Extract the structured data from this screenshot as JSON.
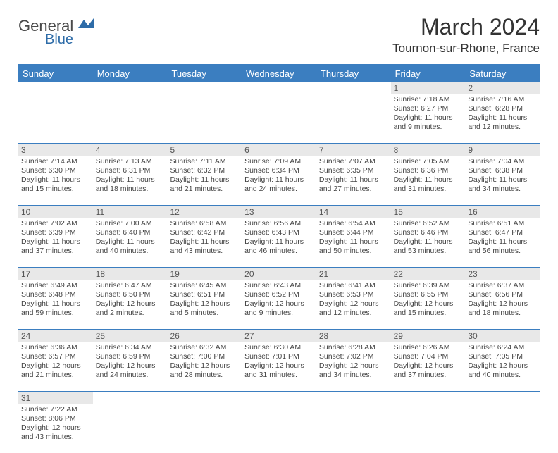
{
  "logo": {
    "main": "General",
    "sub": "Blue"
  },
  "title": "March 2024",
  "location": "Tournon-sur-Rhone, France",
  "colors": {
    "header_bg": "#3b7ec0",
    "header_text": "#ffffff",
    "daynum_bg": "#e8e8e8",
    "border": "#3b7ec0",
    "text": "#444444"
  },
  "day_names": [
    "Sunday",
    "Monday",
    "Tuesday",
    "Wednesday",
    "Thursday",
    "Friday",
    "Saturday"
  ],
  "weeks": [
    {
      "nums": [
        "",
        "",
        "",
        "",
        "",
        "1",
        "2"
      ],
      "cells": [
        {
          "lines": []
        },
        {
          "lines": []
        },
        {
          "lines": []
        },
        {
          "lines": []
        },
        {
          "lines": []
        },
        {
          "lines": [
            "Sunrise: 7:18 AM",
            "Sunset: 6:27 PM",
            "Daylight: 11 hours",
            "and 9 minutes."
          ]
        },
        {
          "lines": [
            "Sunrise: 7:16 AM",
            "Sunset: 6:28 PM",
            "Daylight: 11 hours",
            "and 12 minutes."
          ]
        }
      ]
    },
    {
      "nums": [
        "3",
        "4",
        "5",
        "6",
        "7",
        "8",
        "9"
      ],
      "cells": [
        {
          "lines": [
            "Sunrise: 7:14 AM",
            "Sunset: 6:30 PM",
            "Daylight: 11 hours",
            "and 15 minutes."
          ]
        },
        {
          "lines": [
            "Sunrise: 7:13 AM",
            "Sunset: 6:31 PM",
            "Daylight: 11 hours",
            "and 18 minutes."
          ]
        },
        {
          "lines": [
            "Sunrise: 7:11 AM",
            "Sunset: 6:32 PM",
            "Daylight: 11 hours",
            "and 21 minutes."
          ]
        },
        {
          "lines": [
            "Sunrise: 7:09 AM",
            "Sunset: 6:34 PM",
            "Daylight: 11 hours",
            "and 24 minutes."
          ]
        },
        {
          "lines": [
            "Sunrise: 7:07 AM",
            "Sunset: 6:35 PM",
            "Daylight: 11 hours",
            "and 27 minutes."
          ]
        },
        {
          "lines": [
            "Sunrise: 7:05 AM",
            "Sunset: 6:36 PM",
            "Daylight: 11 hours",
            "and 31 minutes."
          ]
        },
        {
          "lines": [
            "Sunrise: 7:04 AM",
            "Sunset: 6:38 PM",
            "Daylight: 11 hours",
            "and 34 minutes."
          ]
        }
      ]
    },
    {
      "nums": [
        "10",
        "11",
        "12",
        "13",
        "14",
        "15",
        "16"
      ],
      "cells": [
        {
          "lines": [
            "Sunrise: 7:02 AM",
            "Sunset: 6:39 PM",
            "Daylight: 11 hours",
            "and 37 minutes."
          ]
        },
        {
          "lines": [
            "Sunrise: 7:00 AM",
            "Sunset: 6:40 PM",
            "Daylight: 11 hours",
            "and 40 minutes."
          ]
        },
        {
          "lines": [
            "Sunrise: 6:58 AM",
            "Sunset: 6:42 PM",
            "Daylight: 11 hours",
            "and 43 minutes."
          ]
        },
        {
          "lines": [
            "Sunrise: 6:56 AM",
            "Sunset: 6:43 PM",
            "Daylight: 11 hours",
            "and 46 minutes."
          ]
        },
        {
          "lines": [
            "Sunrise: 6:54 AM",
            "Sunset: 6:44 PM",
            "Daylight: 11 hours",
            "and 50 minutes."
          ]
        },
        {
          "lines": [
            "Sunrise: 6:52 AM",
            "Sunset: 6:46 PM",
            "Daylight: 11 hours",
            "and 53 minutes."
          ]
        },
        {
          "lines": [
            "Sunrise: 6:51 AM",
            "Sunset: 6:47 PM",
            "Daylight: 11 hours",
            "and 56 minutes."
          ]
        }
      ]
    },
    {
      "nums": [
        "17",
        "18",
        "19",
        "20",
        "21",
        "22",
        "23"
      ],
      "cells": [
        {
          "lines": [
            "Sunrise: 6:49 AM",
            "Sunset: 6:48 PM",
            "Daylight: 11 hours",
            "and 59 minutes."
          ]
        },
        {
          "lines": [
            "Sunrise: 6:47 AM",
            "Sunset: 6:50 PM",
            "Daylight: 12 hours",
            "and 2 minutes."
          ]
        },
        {
          "lines": [
            "Sunrise: 6:45 AM",
            "Sunset: 6:51 PM",
            "Daylight: 12 hours",
            "and 5 minutes."
          ]
        },
        {
          "lines": [
            "Sunrise: 6:43 AM",
            "Sunset: 6:52 PM",
            "Daylight: 12 hours",
            "and 9 minutes."
          ]
        },
        {
          "lines": [
            "Sunrise: 6:41 AM",
            "Sunset: 6:53 PM",
            "Daylight: 12 hours",
            "and 12 minutes."
          ]
        },
        {
          "lines": [
            "Sunrise: 6:39 AM",
            "Sunset: 6:55 PM",
            "Daylight: 12 hours",
            "and 15 minutes."
          ]
        },
        {
          "lines": [
            "Sunrise: 6:37 AM",
            "Sunset: 6:56 PM",
            "Daylight: 12 hours",
            "and 18 minutes."
          ]
        }
      ]
    },
    {
      "nums": [
        "24",
        "25",
        "26",
        "27",
        "28",
        "29",
        "30"
      ],
      "cells": [
        {
          "lines": [
            "Sunrise: 6:36 AM",
            "Sunset: 6:57 PM",
            "Daylight: 12 hours",
            "and 21 minutes."
          ]
        },
        {
          "lines": [
            "Sunrise: 6:34 AM",
            "Sunset: 6:59 PM",
            "Daylight: 12 hours",
            "and 24 minutes."
          ]
        },
        {
          "lines": [
            "Sunrise: 6:32 AM",
            "Sunset: 7:00 PM",
            "Daylight: 12 hours",
            "and 28 minutes."
          ]
        },
        {
          "lines": [
            "Sunrise: 6:30 AM",
            "Sunset: 7:01 PM",
            "Daylight: 12 hours",
            "and 31 minutes."
          ]
        },
        {
          "lines": [
            "Sunrise: 6:28 AM",
            "Sunset: 7:02 PM",
            "Daylight: 12 hours",
            "and 34 minutes."
          ]
        },
        {
          "lines": [
            "Sunrise: 6:26 AM",
            "Sunset: 7:04 PM",
            "Daylight: 12 hours",
            "and 37 minutes."
          ]
        },
        {
          "lines": [
            "Sunrise: 6:24 AM",
            "Sunset: 7:05 PM",
            "Daylight: 12 hours",
            "and 40 minutes."
          ]
        }
      ]
    },
    {
      "nums": [
        "31",
        "",
        "",
        "",
        "",
        "",
        ""
      ],
      "cells": [
        {
          "lines": [
            "Sunrise: 7:22 AM",
            "Sunset: 8:06 PM",
            "Daylight: 12 hours",
            "and 43 minutes."
          ]
        },
        {
          "lines": []
        },
        {
          "lines": []
        },
        {
          "lines": []
        },
        {
          "lines": []
        },
        {
          "lines": []
        },
        {
          "lines": []
        }
      ]
    }
  ]
}
